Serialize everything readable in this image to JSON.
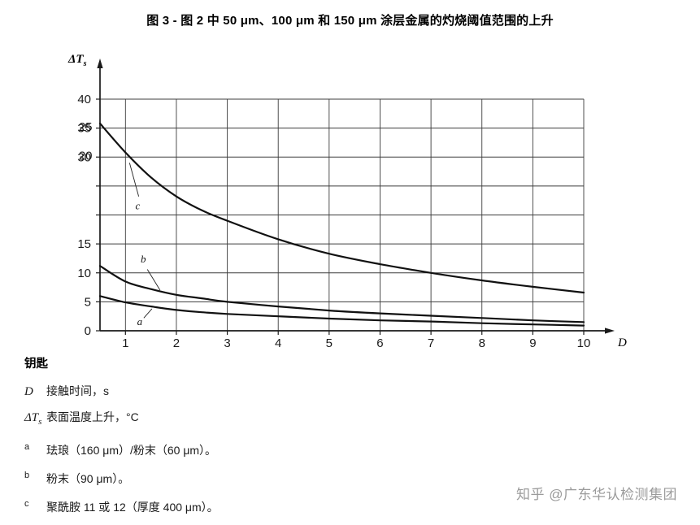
{
  "page": {
    "title": "图 3 - 图 2 中 50 μm、100 μm 和 150 μm 涂层金属的灼烧阈值范围的上升",
    "watermark": "知乎 @广东华认检测集团"
  },
  "chart_data": {
    "type": "line",
    "title": "图 3 - 图 2 中 50 μm、100 μm 和 150 μm 涂层金属的灼烧阈值范围的上升",
    "grid": true,
    "x_axis": {
      "label": "D",
      "unit": "s",
      "min": 0.5,
      "max": 10,
      "ticks": [
        1,
        2,
        3,
        4,
        5,
        6,
        7,
        8,
        9,
        10
      ]
    },
    "y_axis": {
      "label": "ΔT",
      "label_sub": "s",
      "unit": "°C",
      "min": 0,
      "max": 40,
      "grid_step": 5,
      "ticks": [
        {
          "v": 0,
          "label": "0"
        },
        {
          "v": 5,
          "label": "5"
        },
        {
          "v": 10,
          "label": "10"
        },
        {
          "v": 15,
          "label": "15"
        },
        {
          "v": 20,
          "label": ""
        },
        {
          "v": 25,
          "label": ""
        },
        {
          "v": 30,
          "label": "30",
          "ghost": "20"
        },
        {
          "v": 35,
          "label": "35",
          "ghost": "25"
        },
        {
          "v": 40,
          "label": "40"
        }
      ]
    },
    "x": [
      0.5,
      1,
      1.5,
      2,
      2.5,
      3,
      4,
      5,
      6,
      7,
      8,
      9,
      10
    ],
    "series": [
      {
        "name": "a",
        "desc": "珐琅（160 μm）/粉末（60 μm）",
        "y": [
          6.0,
          4.9,
          4.2,
          3.6,
          3.2,
          2.9,
          2.5,
          2.1,
          1.8,
          1.6,
          1.3,
          1.1,
          0.9
        ],
        "label_pos": [
          1.28,
          1.0
        ],
        "leader": [
          [
            1.36,
            2.2
          ],
          [
            1.52,
            3.8
          ]
        ]
      },
      {
        "name": "b",
        "desc": "粉末（90 μm）",
        "y": [
          11.2,
          8.5,
          7.2,
          6.2,
          5.6,
          5.0,
          4.2,
          3.5,
          3.0,
          2.6,
          2.2,
          1.8,
          1.5
        ],
        "label_pos": [
          1.35,
          11.8
        ],
        "leader": [
          [
            1.43,
            10.6
          ],
          [
            1.68,
            7.0
          ]
        ]
      },
      {
        "name": "c",
        "desc": "聚酰胺 11 或 12（厚度 400 μm）",
        "y": [
          35.8,
          30.8,
          26.5,
          23.2,
          20.8,
          19.0,
          15.8,
          13.3,
          11.5,
          10.0,
          8.7,
          7.6,
          6.6
        ],
        "label_pos": [
          1.24,
          21.0
        ],
        "leader": [
          [
            1.08,
            29.0
          ],
          [
            1.26,
            23.2
          ]
        ]
      }
    ]
  },
  "key": {
    "heading": "钥匙",
    "items": [
      {
        "symbol": "D",
        "text": "接触时间，s"
      },
      {
        "symbol": "ΔT",
        "sub": "s",
        "text": "表面温度上升，°C"
      },
      {
        "symbol": "a",
        "text": "珐琅（160 μm）/粉末（60 μm）。"
      },
      {
        "symbol": "b",
        "text": "粉末（90 μm）。"
      },
      {
        "symbol": "c",
        "text": "聚酰胺 11 或 12（厚度 400 μm）。"
      }
    ]
  }
}
